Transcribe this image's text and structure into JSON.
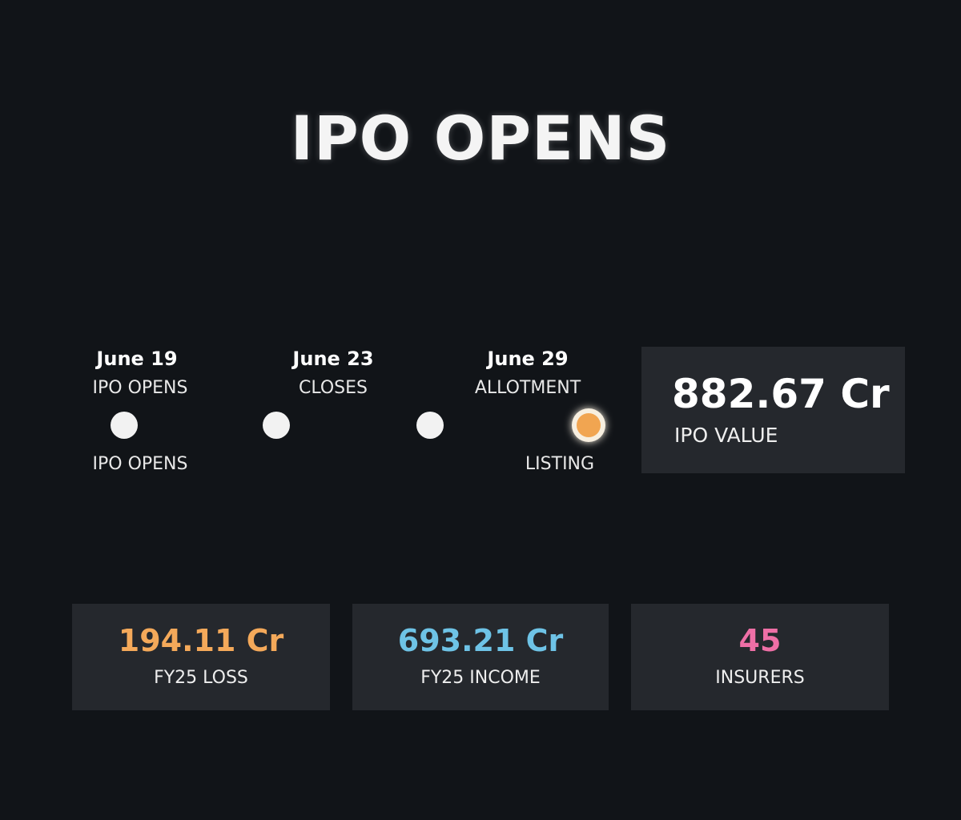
{
  "header": {
    "title": "IPO OPENS"
  },
  "timeline": {
    "steps": [
      {
        "date": "June 19",
        "label": "IPO OPENS"
      },
      {
        "date": "June 23",
        "label": "CLOSES"
      },
      {
        "date": "June 29",
        "label": "ALLOTMENT"
      }
    ],
    "bottom_labels": [
      "IPO OPENS",
      "LISTING"
    ]
  },
  "value_card": {
    "value": "882.67 Cr",
    "label": "IPO VALUE"
  },
  "stats": [
    {
      "value": "194.11 Cr",
      "label": "FY25 LOSS"
    },
    {
      "value": "693.21 Cr",
      "label": "FY25 INCOME"
    },
    {
      "value": "45",
      "label": "INSURERS"
    }
  ]
}
